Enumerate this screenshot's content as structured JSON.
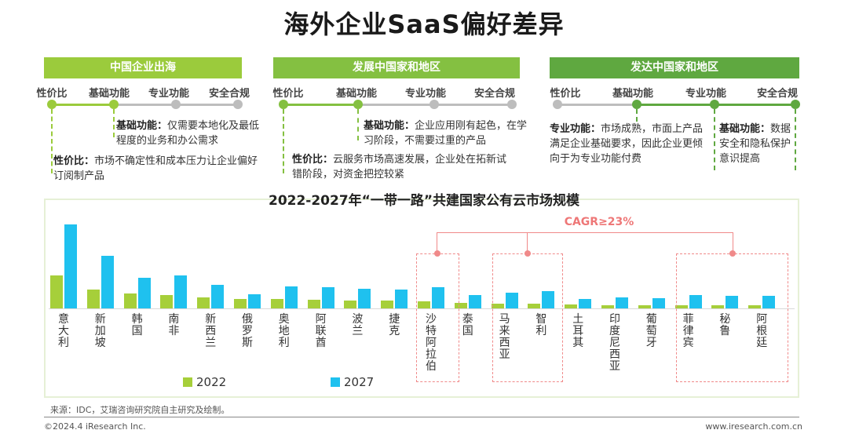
{
  "title": "海外企业SaaS偏好差异",
  "bands": [
    {
      "label": "中国企业出海",
      "color": "#9bcb3c"
    },
    {
      "label": "发展中国家和地区",
      "color": "#84c041"
    },
    {
      "label": "发达中国家和地区",
      "color": "#5fa840"
    }
  ],
  "stages": [
    "性价比",
    "基础功能",
    "专业功能",
    "安全合规"
  ],
  "notes": {
    "n1a_head": "基础功能：",
    "n1a_body": "仅需要本地化及最低程度的业务和办公需求",
    "n1b_head": "性价比：",
    "n1b_body": "市场不确定性和成本压力让企业偏好订阅制产品",
    "n2a_head": "基础功能：",
    "n2a_body": "企业应用刚有起色，在学习阶段，不需要过重的产品",
    "n2b_head": "性价比：",
    "n2b_body": "云服务市场高速发展，企业处在拓新试错阶段，对资金把控较紧",
    "n3a_head": "专业功能：",
    "n3a_body": "市场成熟，市面上产品满足企业基础要求，因此企业更倾向于为专业功能付费",
    "n3b_head": "基础功能：",
    "n3b_body": "数据安全和隐私保护意识提高"
  },
  "chart_data": {
    "type": "bar",
    "title": "2022-2027年“一带一路”共建国家公有云市场规模",
    "categories": [
      "意大利",
      "新加坡",
      "韩国",
      "南非",
      "新西兰",
      "俄罗斯",
      "奥地利",
      "阿联酋",
      "波兰",
      "捷克",
      "沙特阿拉伯",
      "泰国",
      "马来西亚",
      "智利",
      "土耳其",
      "印度尼西亚",
      "葡萄牙",
      "菲律宾",
      "秘鲁",
      "阿根廷"
    ],
    "series": [
      {
        "name": "2022",
        "color": "#a6cf3a",
        "values": [
          42,
          24,
          19,
          17,
          14,
          12,
          12,
          11,
          10,
          10,
          9,
          7,
          6,
          6,
          5,
          4,
          4,
          4,
          4,
          4
        ]
      },
      {
        "name": "2027",
        "color": "#1fc1ef",
        "values": [
          107,
          67,
          39,
          42,
          30,
          18,
          28,
          27,
          25,
          24,
          27,
          17,
          20,
          22,
          12,
          14,
          13,
          17,
          16,
          16
        ]
      }
    ],
    "ylim": [
      0,
      110
    ],
    "highlight_groups": [
      [
        10
      ],
      [
        12,
        13
      ],
      [
        17,
        18,
        19
      ]
    ],
    "annotation": "CAGR≥23%"
  },
  "source": "来源：IDC，艾瑞咨询研究院自主研究及绘制。",
  "footer_left": "©2024.4 iResearch Inc.",
  "footer_right": "www.iresearch.com.cn"
}
